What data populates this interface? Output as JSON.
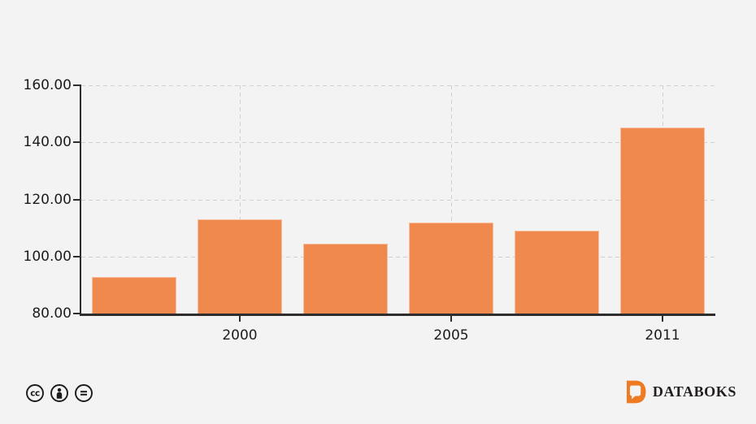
{
  "chart_data": {
    "type": "bar",
    "categories": [
      "",
      "2000",
      "",
      "2005",
      "",
      "2011"
    ],
    "values": [
      92.7,
      113.0,
      104.6,
      112.0,
      109.0,
      145.3
    ],
    "title": "",
    "xlabel": "",
    "ylabel": "",
    "ylim": [
      80,
      160
    ],
    "y_ticks": [
      80,
      100,
      120,
      140,
      160
    ],
    "y_tick_labels": [
      "80.00",
      "100.00",
      "120.00",
      "140.00",
      "160.00"
    ],
    "x_tick_positions": [
      1,
      3,
      5
    ],
    "grid": true,
    "legend": false,
    "bar_color": "#f0894e"
  },
  "footer": {
    "license": {
      "icons": [
        "cc-icon",
        "cc-by-icon",
        "cc-nd-icon"
      ]
    },
    "brand": {
      "wordmark": "DATABOKS",
      "logo_letter": "D"
    }
  },
  "colors": {
    "background": "#f3f3f4",
    "bar": "#f0894e",
    "grid": "#d0d0d0",
    "axis": "#2e2e2e",
    "text": "#1c1c1c",
    "brand_orange": "#ee7b23",
    "brand_text": "#231f20"
  }
}
